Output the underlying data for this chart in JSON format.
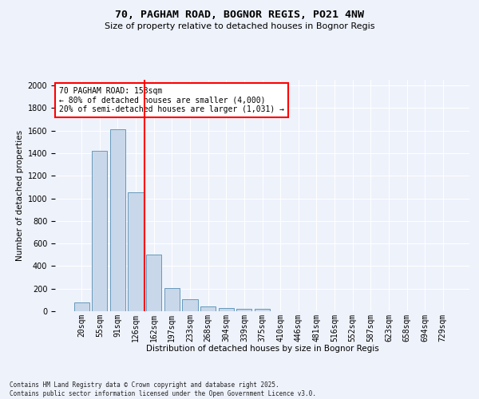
{
  "title1": "70, PAGHAM ROAD, BOGNOR REGIS, PO21 4NW",
  "title2": "Size of property relative to detached houses in Bognor Regis",
  "xlabel": "Distribution of detached houses by size in Bognor Regis",
  "ylabel": "Number of detached properties",
  "bar_labels": [
    "20sqm",
    "55sqm",
    "91sqm",
    "126sqm",
    "162sqm",
    "197sqm",
    "233sqm",
    "268sqm",
    "304sqm",
    "339sqm",
    "375sqm",
    "410sqm",
    "446sqm",
    "481sqm",
    "516sqm",
    "552sqm",
    "587sqm",
    "623sqm",
    "658sqm",
    "694sqm",
    "729sqm"
  ],
  "bar_values": [
    80,
    1420,
    1610,
    1055,
    500,
    205,
    105,
    40,
    30,
    20,
    20,
    0,
    0,
    0,
    0,
    0,
    0,
    0,
    0,
    0,
    0
  ],
  "bar_color": "#c8d8ea",
  "bar_edge_color": "#6699bb",
  "vline_color": "red",
  "vline_x_index": 4,
  "ylim": [
    0,
    2050
  ],
  "yticks": [
    0,
    200,
    400,
    600,
    800,
    1000,
    1200,
    1400,
    1600,
    1800,
    2000
  ],
  "annotation_title": "70 PAGHAM ROAD: 153sqm",
  "annotation_line1": "← 80% of detached houses are smaller (4,000)",
  "annotation_line2": "20% of semi-detached houses are larger (1,031) →",
  "annotation_box_color": "#ffffff",
  "annotation_box_edgecolor": "red",
  "footer1": "Contains HM Land Registry data © Crown copyright and database right 2025.",
  "footer2": "Contains public sector information licensed under the Open Government Licence v3.0.",
  "bg_color": "#eef2fb",
  "grid_color": "#ffffff",
  "title1_fontsize": 9.5,
  "title2_fontsize": 8,
  "xlabel_fontsize": 7.5,
  "ylabel_fontsize": 7.5,
  "tick_fontsize": 7,
  "annotation_fontsize": 7,
  "footer_fontsize": 5.5
}
